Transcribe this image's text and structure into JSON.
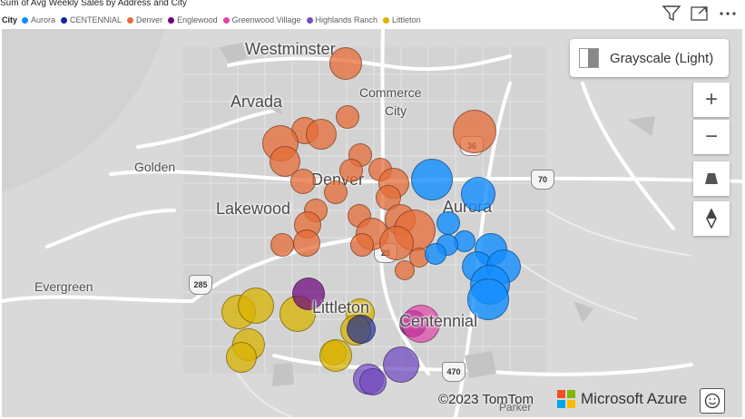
{
  "visual": {
    "title": "Sum of Avg Weekly Sales by Address and City",
    "legend_label": "City",
    "legend": [
      {
        "name": "Aurora",
        "color": "#118DFF"
      },
      {
        "name": "CENTENNIAL",
        "color": "#12239E"
      },
      {
        "name": "Denver",
        "color": "#E66C37"
      },
      {
        "name": "Englewood",
        "color": "#6B007B"
      },
      {
        "name": "Greenwood Village",
        "color": "#E044A7"
      },
      {
        "name": "Highlands Ranch",
        "color": "#744EC2"
      },
      {
        "name": "Littleton",
        "color": "#D9B300"
      }
    ],
    "icons": [
      "filter-icon",
      "focus-mode-icon",
      "more-options-icon"
    ]
  },
  "map": {
    "labels": {
      "westminster": "Westminster",
      "arvada": "Arvada",
      "commerce": "Commerce",
      "commerce2": "City",
      "golden": "Golden",
      "denver": "Denver",
      "lakewood": "Lakewood",
      "aurora": "Aurora",
      "evergreen": "Evergreen",
      "littleton": "Littleton",
      "centennial": "Centennial",
      "parker": "Parker"
    },
    "shields": {
      "r36": "36",
      "r70": "70",
      "r25": "25",
      "r285": "285",
      "r470": "470"
    },
    "style_label": "Grayscale (Light)",
    "zoom_in": "+",
    "zoom_out": "−",
    "copyright": "©2023 TomTom",
    "provider": "Microsoft Azure"
  }
}
